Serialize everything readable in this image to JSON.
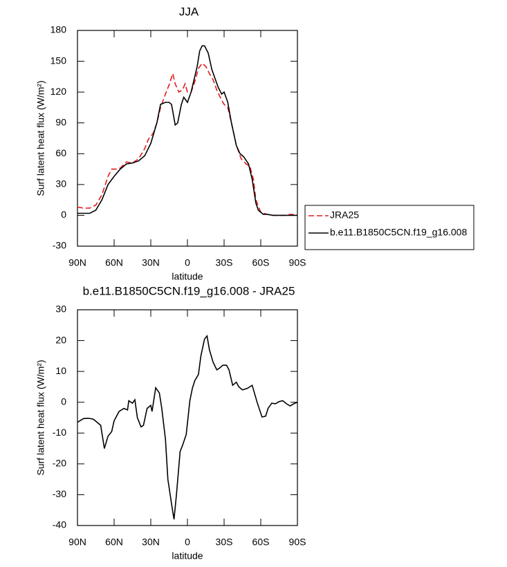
{
  "chart_data": [
    {
      "type": "line",
      "title": "JJA",
      "x_label": "latitude",
      "y_label": "Surf latent heat flux (W/m²)",
      "xlim": [
        90,
        -90
      ],
      "xticks": [
        {
          "value": 90,
          "label": "90N"
        },
        {
          "value": 60,
          "label": "60N"
        },
        {
          "value": 30,
          "label": "30N"
        },
        0,
        {
          "value": -30,
          "label": "30S"
        },
        {
          "value": -60,
          "label": "60S"
        },
        {
          "value": -90,
          "label": "90S"
        }
      ],
      "ylim": [
        -30,
        180
      ],
      "yticks": [
        -30,
        0,
        30,
        60,
        90,
        120,
        150,
        180
      ],
      "legend": "right",
      "series": [
        {
          "name": "JRA25",
          "color": "#e31a1c",
          "dashed": true,
          "x": [
            90,
            85,
            80,
            75,
            70,
            65,
            62,
            58,
            55,
            50,
            45,
            40,
            35,
            32,
            28,
            25,
            22,
            18,
            15,
            12,
            10,
            7,
            4,
            2,
            0,
            -3,
            -6,
            -9,
            -12,
            -15,
            -18,
            -21,
            -24,
            -28,
            -30,
            -33,
            -36,
            -40,
            -44,
            -48,
            -51,
            -54,
            -56,
            -60,
            -65,
            -70,
            -75,
            -80,
            -85,
            -90
          ],
          "values": [
            8,
            7,
            7,
            10,
            20,
            38,
            45,
            45,
            46,
            52,
            51,
            55,
            65,
            74,
            80,
            90,
            105,
            118,
            127,
            138,
            128,
            120,
            122,
            128,
            120,
            120,
            130,
            143,
            148,
            145,
            138,
            132,
            122,
            112,
            108,
            105,
            90,
            68,
            55,
            50,
            48,
            35,
            15,
            3,
            1,
            0,
            0,
            0,
            1,
            0
          ]
        },
        {
          "name": "b.e11.B1850C5CN.f19_g16.008",
          "color": "#000000",
          "dashed": false,
          "x": [
            90,
            85,
            80,
            75,
            70,
            65,
            60,
            55,
            50,
            45,
            40,
            35,
            30,
            25,
            22,
            18,
            15,
            13,
            10,
            8,
            5,
            3,
            0,
            -3,
            -5,
            -8,
            -10,
            -12,
            -14,
            -17,
            -20,
            -25,
            -28,
            -30,
            -33,
            -36,
            -40,
            -43,
            -46,
            -50,
            -53,
            -56,
            -58,
            -62,
            -65,
            -70,
            -75,
            -80,
            -85,
            -90
          ],
          "values": [
            2,
            2,
            2,
            5,
            15,
            30,
            38,
            45,
            50,
            51,
            53,
            58,
            70,
            90,
            108,
            110,
            110,
            108,
            88,
            90,
            108,
            115,
            110,
            120,
            130,
            145,
            160,
            165,
            165,
            158,
            142,
            125,
            118,
            120,
            110,
            90,
            68,
            60,
            57,
            50,
            35,
            12,
            5,
            1,
            1,
            0,
            0,
            0,
            0,
            0
          ]
        }
      ]
    },
    {
      "type": "line",
      "title": "b.e11.B1850C5CN.f19_g16.008 - JRA25",
      "x_label": "latitude",
      "y_label": "Surf latent heat flux (W/m²)",
      "xlim": [
        90,
        -90
      ],
      "xticks": [
        {
          "value": 90,
          "label": "90N"
        },
        {
          "value": 60,
          "label": "60N"
        },
        {
          "value": 30,
          "label": "30N"
        },
        0,
        {
          "value": -30,
          "label": "30S"
        },
        {
          "value": -60,
          "label": "60S"
        },
        {
          "value": -90,
          "label": "90S"
        }
      ],
      "ylim": [
        -40,
        30
      ],
      "yticks": [
        -40,
        -30,
        -20,
        -10,
        0,
        10,
        20,
        30
      ],
      "color": "#000000",
      "x": [
        90,
        85,
        81,
        77,
        71,
        68,
        65,
        62,
        60,
        56,
        52,
        49,
        48,
        45,
        43,
        41,
        38,
        36,
        33,
        30,
        29,
        26,
        23,
        21,
        18,
        16,
        13,
        11,
        9,
        6,
        4,
        1,
        -2,
        -4,
        -6,
        -9,
        -11,
        -14,
        -16,
        -18,
        -21,
        -24,
        -26,
        -29,
        -32,
        -34,
        -37,
        -40,
        -42,
        -45,
        -49,
        -53,
        -57,
        -61,
        -64,
        -66,
        -69,
        -72,
        -75,
        -78,
        -81,
        -84,
        -87,
        -90
      ],
      "values": [
        -6.5,
        -5.3,
        -5.2,
        -5.5,
        -7.5,
        -15,
        -11,
        -9.5,
        -6,
        -3,
        -2,
        -2.5,
        0.5,
        -0.3,
        0.8,
        -5,
        -8,
        -7.5,
        -2,
        -1,
        -3,
        4.7,
        3,
        -2,
        -12,
        -25,
        -33,
        -38,
        -30,
        -16,
        -14,
        -10.5,
        0.5,
        4.5,
        7,
        9,
        15,
        20.5,
        21.5,
        17,
        13,
        10.5,
        11,
        12,
        12,
        10.5,
        5.5,
        6.5,
        5,
        4,
        4.5,
        5.5,
        0,
        -4.8,
        -4.5,
        -2,
        -0.3,
        -0.5,
        0.2,
        0.5,
        -0.5,
        -1.2,
        -0.5,
        0
      ]
    }
  ]
}
